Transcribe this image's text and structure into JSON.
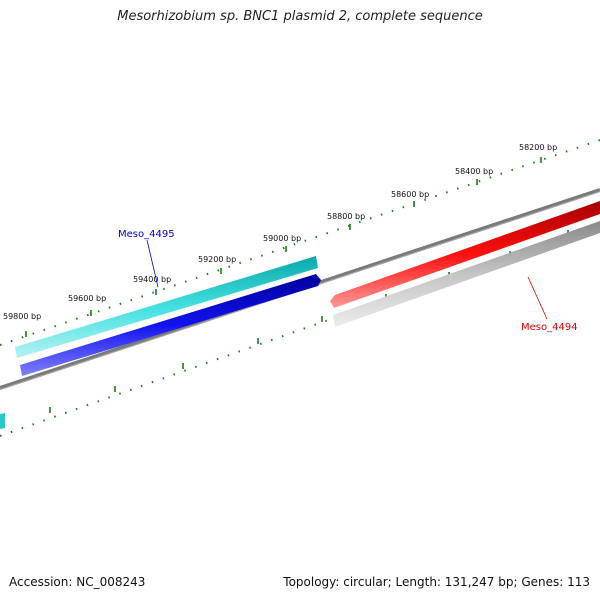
{
  "title": "Mesorhizobium sp. BNC1 plasmid 2, complete sequence",
  "footer": {
    "accession": "Accession: NC_008243",
    "summary": "Topology: circular; Length: 131,247 bp; Genes: 113"
  },
  "ruler": {
    "tick_labels": [
      "58200 bp",
      "58400 bp",
      "58600 bp",
      "58800 bp",
      "59000 bp",
      "59200 bp",
      "59400 bp",
      "59600 bp",
      "59800 bp"
    ]
  },
  "genes": [
    {
      "name": "Meso_4495",
      "strand": "forward",
      "color": "#0000cc"
    },
    {
      "name": "Meso_4494",
      "strand": "reverse",
      "color": "#dd0000"
    }
  ],
  "colors": {
    "backbone": "#808080",
    "ticks": "#1a7a1a",
    "cds_forward": "#2ac8c8",
    "gene_forward": "#0a0adf",
    "gene_reverse": "#e80000",
    "cds_reverse": "#b5b5b5"
  }
}
